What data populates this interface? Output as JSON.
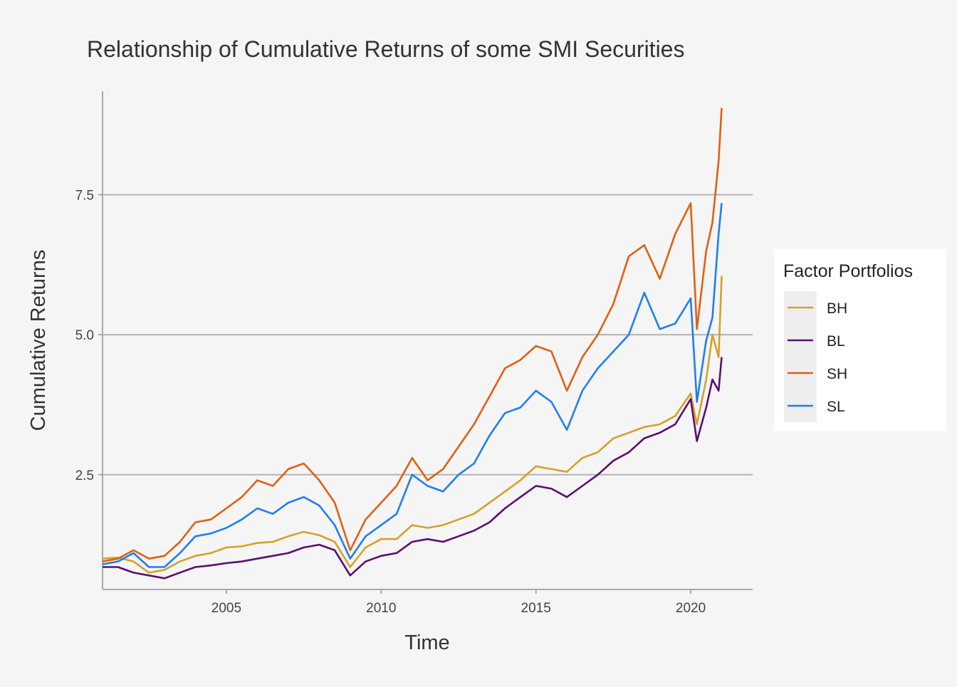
{
  "chart_data": {
    "type": "line",
    "title": "Relationship of Cumulative Returns of some SMI Securities",
    "xlabel": "Time",
    "ylabel": "Cumulative Returns",
    "xlim": [
      2001.0,
      2022.0
    ],
    "ylim": [
      0.45,
      9.35
    ],
    "x_ticks": [
      2005,
      2010,
      2015,
      2020
    ],
    "x_tick_labels": [
      "2005",
      "2010",
      "2015",
      "2020"
    ],
    "y_ticks": [
      2.5,
      5.0,
      7.5
    ],
    "y_tick_labels": [
      "2.5",
      "5.0",
      "7.5"
    ],
    "grid": "horizontal major",
    "legend": {
      "title": "Factor Portfolios",
      "placement": "right"
    },
    "series": [
      {
        "name": "BH",
        "color": "#D4A12A",
        "points": [
          [
            2001.0,
            1.0
          ],
          [
            2001.5,
            1.02
          ],
          [
            2002.0,
            0.95
          ],
          [
            2002.5,
            0.75
          ],
          [
            2003.0,
            0.8
          ],
          [
            2003.5,
            0.95
          ],
          [
            2004.0,
            1.05
          ],
          [
            2004.5,
            1.1
          ],
          [
            2005.0,
            1.2
          ],
          [
            2005.5,
            1.22
          ],
          [
            2006.0,
            1.28
          ],
          [
            2006.5,
            1.3
          ],
          [
            2007.0,
            1.4
          ],
          [
            2007.5,
            1.48
          ],
          [
            2008.0,
            1.42
          ],
          [
            2008.5,
            1.3
          ],
          [
            2009.0,
            0.85
          ],
          [
            2009.5,
            1.2
          ],
          [
            2010.0,
            1.35
          ],
          [
            2010.5,
            1.35
          ],
          [
            2011.0,
            1.6
          ],
          [
            2011.5,
            1.55
          ],
          [
            2012.0,
            1.6
          ],
          [
            2012.5,
            1.7
          ],
          [
            2013.0,
            1.8
          ],
          [
            2013.5,
            2.0
          ],
          [
            2014.0,
            2.2
          ],
          [
            2014.5,
            2.4
          ],
          [
            2015.0,
            2.65
          ],
          [
            2015.5,
            2.6
          ],
          [
            2016.0,
            2.55
          ],
          [
            2016.5,
            2.8
          ],
          [
            2017.0,
            2.9
          ],
          [
            2017.5,
            3.15
          ],
          [
            2018.0,
            3.25
          ],
          [
            2018.5,
            3.35
          ],
          [
            2019.0,
            3.4
          ],
          [
            2019.5,
            3.55
          ],
          [
            2020.0,
            3.95
          ],
          [
            2020.2,
            3.4
          ],
          [
            2020.5,
            4.2
          ],
          [
            2020.7,
            5.0
          ],
          [
            2020.9,
            4.6
          ],
          [
            2021.0,
            6.05
          ]
        ]
      },
      {
        "name": "BL",
        "color": "#5A0F70",
        "points": [
          [
            2001.0,
            0.85
          ],
          [
            2001.5,
            0.85
          ],
          [
            2002.0,
            0.75
          ],
          [
            2002.5,
            0.7
          ],
          [
            2003.0,
            0.65
          ],
          [
            2003.5,
            0.75
          ],
          [
            2004.0,
            0.85
          ],
          [
            2004.5,
            0.88
          ],
          [
            2005.0,
            0.92
          ],
          [
            2005.5,
            0.95
          ],
          [
            2006.0,
            1.0
          ],
          [
            2006.5,
            1.05
          ],
          [
            2007.0,
            1.1
          ],
          [
            2007.5,
            1.2
          ],
          [
            2008.0,
            1.25
          ],
          [
            2008.5,
            1.15
          ],
          [
            2009.0,
            0.7
          ],
          [
            2009.5,
            0.95
          ],
          [
            2010.0,
            1.05
          ],
          [
            2010.5,
            1.1
          ],
          [
            2011.0,
            1.3
          ],
          [
            2011.5,
            1.35
          ],
          [
            2012.0,
            1.3
          ],
          [
            2012.5,
            1.4
          ],
          [
            2013.0,
            1.5
          ],
          [
            2013.5,
            1.65
          ],
          [
            2014.0,
            1.9
          ],
          [
            2014.5,
            2.1
          ],
          [
            2015.0,
            2.3
          ],
          [
            2015.5,
            2.25
          ],
          [
            2016.0,
            2.1
          ],
          [
            2016.5,
            2.3
          ],
          [
            2017.0,
            2.5
          ],
          [
            2017.5,
            2.75
          ],
          [
            2018.0,
            2.9
          ],
          [
            2018.5,
            3.15
          ],
          [
            2019.0,
            3.25
          ],
          [
            2019.5,
            3.4
          ],
          [
            2020.0,
            3.85
          ],
          [
            2020.2,
            3.1
          ],
          [
            2020.5,
            3.7
          ],
          [
            2020.7,
            4.2
          ],
          [
            2020.9,
            4.0
          ],
          [
            2021.0,
            4.6
          ]
        ]
      },
      {
        "name": "SH",
        "color": "#E06010",
        "points": [
          [
            2001.0,
            0.95
          ],
          [
            2001.5,
            1.0
          ],
          [
            2002.0,
            1.15
          ],
          [
            2002.5,
            1.0
          ],
          [
            2003.0,
            1.05
          ],
          [
            2003.5,
            1.3
          ],
          [
            2004.0,
            1.65
          ],
          [
            2004.5,
            1.7
          ],
          [
            2005.0,
            1.9
          ],
          [
            2005.5,
            2.1
          ],
          [
            2006.0,
            2.4
          ],
          [
            2006.5,
            2.3
          ],
          [
            2007.0,
            2.6
          ],
          [
            2007.5,
            2.7
          ],
          [
            2008.0,
            2.4
          ],
          [
            2008.5,
            2.0
          ],
          [
            2009.0,
            1.15
          ],
          [
            2009.5,
            1.7
          ],
          [
            2010.0,
            2.0
          ],
          [
            2010.5,
            2.3
          ],
          [
            2011.0,
            2.8
          ],
          [
            2011.5,
            2.4
          ],
          [
            2012.0,
            2.6
          ],
          [
            2012.5,
            3.0
          ],
          [
            2013.0,
            3.4
          ],
          [
            2013.5,
            3.9
          ],
          [
            2014.0,
            4.4
          ],
          [
            2014.5,
            4.55
          ],
          [
            2015.0,
            4.8
          ],
          [
            2015.5,
            4.7
          ],
          [
            2016.0,
            4.0
          ],
          [
            2016.5,
            4.6
          ],
          [
            2017.0,
            5.0
          ],
          [
            2017.5,
            5.55
          ],
          [
            2018.0,
            6.4
          ],
          [
            2018.5,
            6.6
          ],
          [
            2019.0,
            6.0
          ],
          [
            2019.5,
            6.8
          ],
          [
            2020.0,
            7.35
          ],
          [
            2020.2,
            5.1
          ],
          [
            2020.5,
            6.5
          ],
          [
            2020.7,
            7.0
          ],
          [
            2020.9,
            8.1
          ],
          [
            2021.0,
            9.05
          ]
        ]
      },
      {
        "name": "SL",
        "color": "#1E7FF0",
        "points": [
          [
            2001.0,
            0.9
          ],
          [
            2001.5,
            0.95
          ],
          [
            2002.0,
            1.1
          ],
          [
            2002.5,
            0.85
          ],
          [
            2003.0,
            0.85
          ],
          [
            2003.5,
            1.1
          ],
          [
            2004.0,
            1.4
          ],
          [
            2004.5,
            1.45
          ],
          [
            2005.0,
            1.55
          ],
          [
            2005.5,
            1.7
          ],
          [
            2006.0,
            1.9
          ],
          [
            2006.5,
            1.8
          ],
          [
            2007.0,
            2.0
          ],
          [
            2007.5,
            2.1
          ],
          [
            2008.0,
            1.95
          ],
          [
            2008.5,
            1.6
          ],
          [
            2009.0,
            1.0
          ],
          [
            2009.5,
            1.4
          ],
          [
            2010.0,
            1.6
          ],
          [
            2010.5,
            1.8
          ],
          [
            2011.0,
            2.5
          ],
          [
            2011.5,
            2.3
          ],
          [
            2012.0,
            2.2
          ],
          [
            2012.5,
            2.5
          ],
          [
            2013.0,
            2.7
          ],
          [
            2013.5,
            3.2
          ],
          [
            2014.0,
            3.6
          ],
          [
            2014.5,
            3.7
          ],
          [
            2015.0,
            4.0
          ],
          [
            2015.5,
            3.8
          ],
          [
            2016.0,
            3.3
          ],
          [
            2016.5,
            4.0
          ],
          [
            2017.0,
            4.4
          ],
          [
            2017.5,
            4.7
          ],
          [
            2018.0,
            5.0
          ],
          [
            2018.5,
            5.75
          ],
          [
            2019.0,
            5.1
          ],
          [
            2019.5,
            5.2
          ],
          [
            2020.0,
            5.65
          ],
          [
            2020.2,
            3.8
          ],
          [
            2020.5,
            4.9
          ],
          [
            2020.7,
            5.3
          ],
          [
            2020.9,
            6.8
          ],
          [
            2021.0,
            7.35
          ]
        ]
      }
    ]
  }
}
